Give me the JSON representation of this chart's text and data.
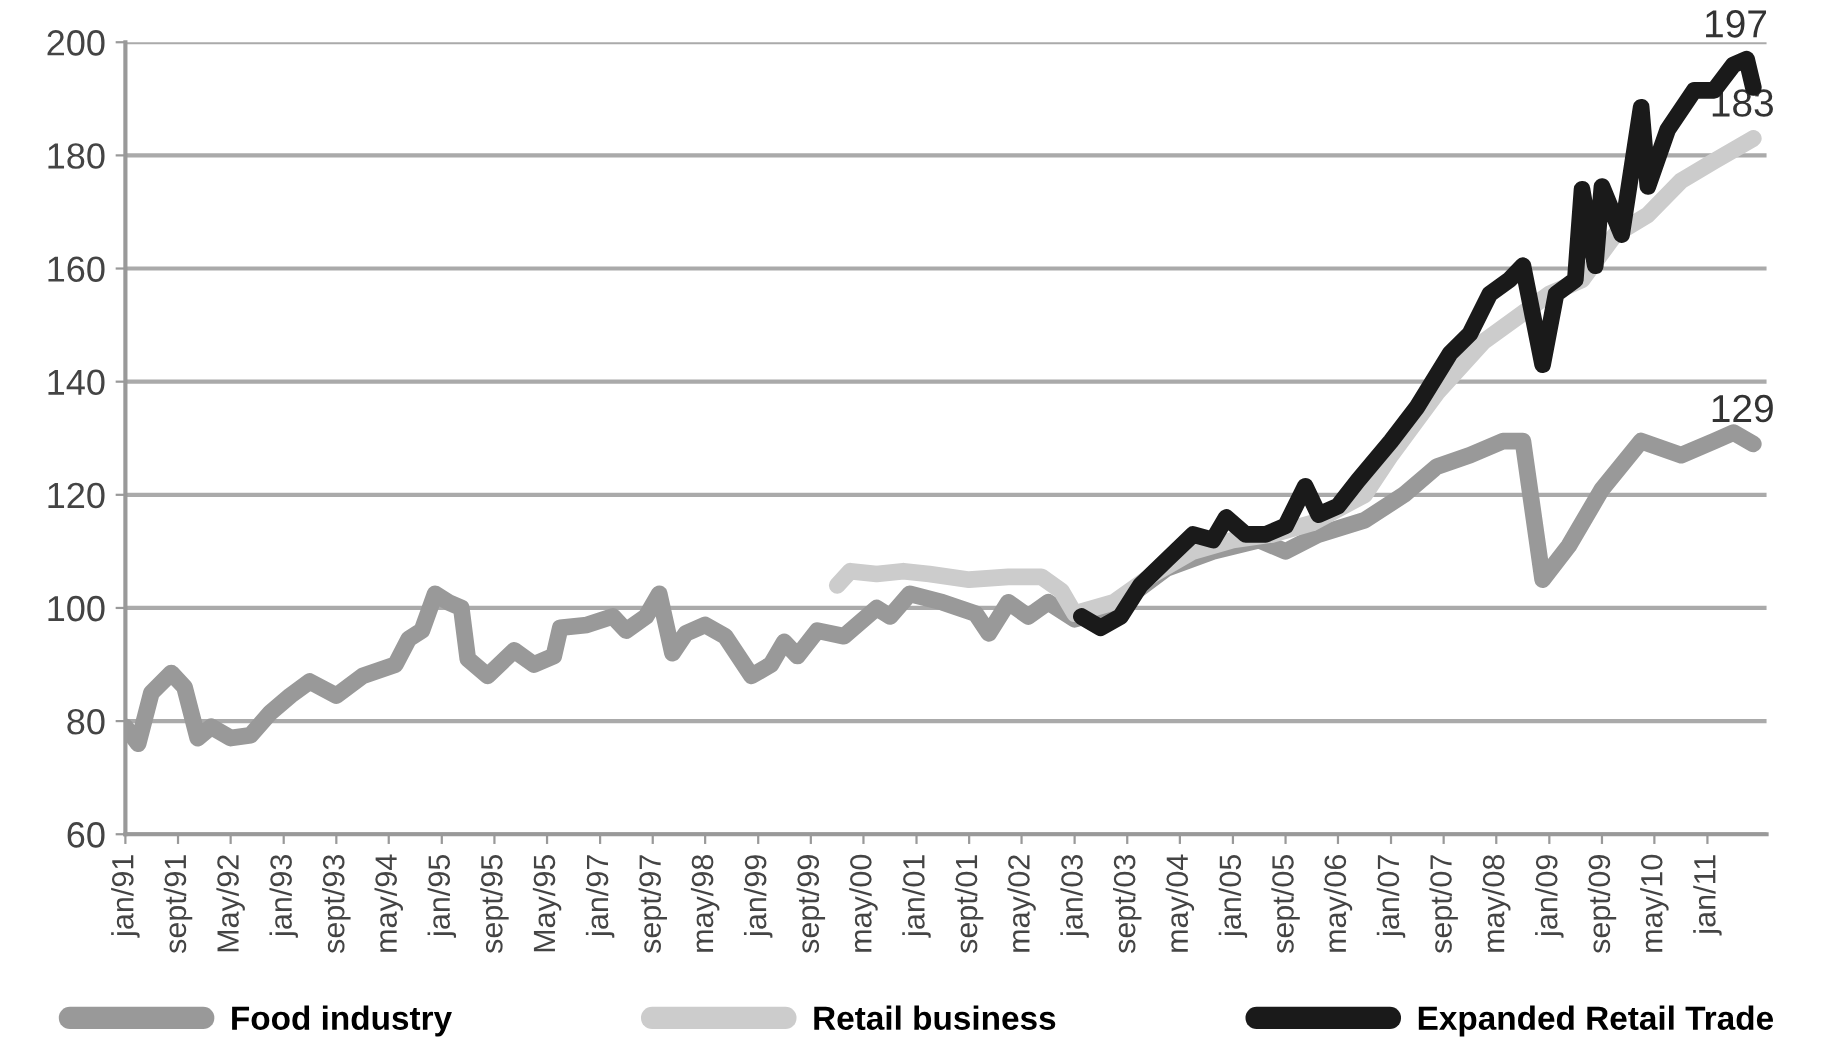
{
  "chart_data": {
    "type": "line",
    "series": [
      {
        "name": "Food industry",
        "color": "#999999",
        "x": [
          "1991-01",
          "1991-03",
          "1991-05",
          "1991-08",
          "1991-10",
          "1991-12",
          "1992-02",
          "1992-05",
          "1992-08",
          "1992-11",
          "1993-02",
          "1993-05",
          "1993-09",
          "1994-01",
          "1994-06",
          "1994-08",
          "1994-10",
          "1994-12",
          "1995-02",
          "1995-04",
          "1995-05",
          "1995-08",
          "1995-12",
          "1996-03",
          "1996-06",
          "1996-07",
          "1996-11",
          "1997-03",
          "1997-05",
          "1997-08",
          "1997-10",
          "1997-12",
          "1998-02",
          "1998-05",
          "1998-08",
          "1998-12",
          "1999-03",
          "1999-05",
          "1999-07",
          "1999-10",
          "2000-02",
          "2000-07",
          "2000-09",
          "2000-12",
          "2001-05",
          "2001-10",
          "2001-12",
          "2002-03",
          "2002-06",
          "2002-09",
          "2003-01",
          "2003-07",
          "2004-03",
          "2004-10",
          "2005-05",
          "2005-09",
          "2006-02",
          "2006-09",
          "2007-03",
          "2007-08",
          "2008-01",
          "2008-06",
          "2008-09",
          "2008-12",
          "2009-04",
          "2009-09",
          "2010-03",
          "2010-09",
          "2011-02",
          "2011-05",
          "2011-08"
        ],
        "values": [
          79,
          76,
          85,
          88.5,
          86,
          77,
          79,
          77,
          77.5,
          81.5,
          84.5,
          87,
          84.5,
          88,
          90,
          94.5,
          96,
          102.5,
          101,
          100,
          91,
          88,
          92.5,
          90,
          91.5,
          96.5,
          97,
          98.5,
          96,
          98.5,
          102.5,
          92,
          95.5,
          97,
          95,
          88,
          90,
          94,
          91.5,
          96,
          95,
          100,
          98.5,
          102.5,
          101,
          99,
          95.5,
          101,
          98.5,
          101,
          98,
          100,
          107,
          110,
          112,
          110,
          113,
          115.5,
          120,
          125,
          127,
          129.5,
          129.5,
          105,
          111,
          121,
          129.5,
          127,
          129.5,
          131,
          129
        ]
      },
      {
        "name": "Retail business",
        "color": "#cccccc",
        "x": [
          "2000-01",
          "2000-03",
          "2000-07",
          "2000-11",
          "2001-03",
          "2001-09",
          "2002-03",
          "2002-08",
          "2002-11",
          "2003-01",
          "2003-07",
          "2004-01",
          "2004-07",
          "2005-01",
          "2005-07",
          "2006-01",
          "2006-09",
          "2007-01",
          "2007-08",
          "2008-03",
          "2009-01",
          "2009-06",
          "2009-11",
          "2010-04",
          "2010-09",
          "2011-02",
          "2011-08"
        ],
        "values": [
          104,
          106.5,
          106,
          106.5,
          106,
          105,
          105.5,
          105.5,
          103,
          99,
          101,
          106,
          110,
          112,
          113,
          115,
          120,
          127,
          138,
          147,
          155.5,
          158,
          166,
          169.5,
          175.5,
          179,
          183
        ]
      },
      {
        "name": "Expanded Retail Trade",
        "color": "#1a1a1a",
        "x": [
          "2003-02",
          "2003-05",
          "2003-08",
          "2003-11",
          "2004-03",
          "2004-07",
          "2004-10",
          "2004-12",
          "2005-03",
          "2005-06",
          "2005-09",
          "2005-12",
          "2006-02",
          "2006-05",
          "2006-08",
          "2007-01",
          "2007-05",
          "2007-10",
          "2008-01",
          "2008-04",
          "2008-07",
          "2008-09",
          "2008-12",
          "2009-02",
          "2009-05",
          "2009-06",
          "2009-08",
          "2009-09",
          "2009-12",
          "2010-03",
          "2010-04",
          "2010-07",
          "2010-11",
          "2011-02",
          "2011-05",
          "2011-07",
          "2011-08"
        ],
        "values": [
          98.5,
          96.5,
          98.5,
          104,
          108.5,
          113,
          112,
          116,
          113,
          113,
          114.5,
          121.5,
          116.5,
          118,
          122.5,
          129.5,
          135.5,
          145,
          148.5,
          155.5,
          158,
          160.5,
          143,
          155.5,
          158,
          174,
          160.5,
          174.5,
          166,
          188.5,
          174.5,
          184.5,
          191.5,
          191.5,
          196,
          197,
          192
        ]
      }
    ],
    "xlim": [
      "1991-01",
      "2011-10"
    ],
    "xticks": [
      {
        "value": "1991-01",
        "label": "jan/91"
      },
      {
        "value": "1991-09",
        "label": "sept/91"
      },
      {
        "value": "1992-05",
        "label": "May/92"
      },
      {
        "value": "1993-01",
        "label": "jan/93"
      },
      {
        "value": "1993-09",
        "label": "sept/93"
      },
      {
        "value": "1994-05",
        "label": "may/94"
      },
      {
        "value": "1995-01",
        "label": "jan/95"
      },
      {
        "value": "1995-09",
        "label": "sept/95"
      },
      {
        "value": "1996-05",
        "label": "May/95"
      },
      {
        "value": "1997-01",
        "label": "jan/97"
      },
      {
        "value": "1997-09",
        "label": "sept/97"
      },
      {
        "value": "1998-05",
        "label": "may/98"
      },
      {
        "value": "1999-01",
        "label": "jan/99"
      },
      {
        "value": "1999-09",
        "label": "sept/99"
      },
      {
        "value": "2000-05",
        "label": "may/00"
      },
      {
        "value": "2001-01",
        "label": "jan/01"
      },
      {
        "value": "2001-09",
        "label": "sept/01"
      },
      {
        "value": "2002-05",
        "label": "may/02"
      },
      {
        "value": "2003-01",
        "label": "jan/03"
      },
      {
        "value": "2003-09",
        "label": "sept/03"
      },
      {
        "value": "2004-05",
        "label": "may/04"
      },
      {
        "value": "2005-01",
        "label": "jan/05"
      },
      {
        "value": "2005-09",
        "label": "sept/05"
      },
      {
        "value": "2006-05",
        "label": "may/06"
      },
      {
        "value": "2007-01",
        "label": "jan/07"
      },
      {
        "value": "2007-09",
        "label": "sept/07"
      },
      {
        "value": "2008-05",
        "label": "may/08"
      },
      {
        "value": "2009-01",
        "label": "jan/09"
      },
      {
        "value": "2009-09",
        "label": "sept/09"
      },
      {
        "value": "2010-05",
        "label": "may/10"
      },
      {
        "value": "2011-01",
        "label": "jan/11"
      }
    ],
    "ylim": [
      60,
      200
    ],
    "yticks": [
      60,
      80,
      100,
      120,
      140,
      160,
      180,
      200
    ],
    "grid": "y",
    "legend": "bottom",
    "line_style": "solid",
    "annotations": [
      {
        "text": "197",
        "x": "2011-07",
        "y": 197
      },
      {
        "text": "183",
        "x": "2011-08",
        "y": 183
      },
      {
        "text": "129",
        "x": "2011-08",
        "y": 129
      }
    ]
  }
}
